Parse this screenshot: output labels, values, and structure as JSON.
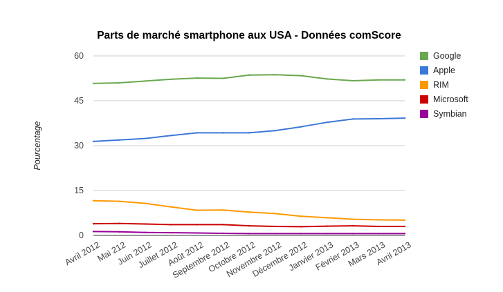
{
  "chart_data": {
    "type": "line",
    "title": "Parts de marché smartphone aux USA - Données comScore",
    "xlabel": "",
    "ylabel": "Pourcentage",
    "ylim": [
      0,
      60
    ],
    "yticks": [
      0,
      15,
      30,
      45,
      60
    ],
    "grid": true,
    "legend_position": "right",
    "categories": [
      "Avril 2012",
      "Mai 212",
      "Juin 2012",
      "Juillet 2012",
      "Août 2012",
      "Septembre 2012",
      "Octobre 2012",
      "Novembre 2012",
      "Décembre 2012",
      "Janvier 2013",
      "Février 2013",
      "Mars 2013",
      "Avril 2013"
    ],
    "series": [
      {
        "name": "Google",
        "color": "#6aa84f",
        "values": [
          50.8,
          51.0,
          51.6,
          52.2,
          52.6,
          52.5,
          53.6,
          53.7,
          53.4,
          52.3,
          51.7,
          52.0,
          52.0
        ]
      },
      {
        "name": "Apple",
        "color": "#3c78d8",
        "values": [
          31.4,
          31.9,
          32.4,
          33.4,
          34.3,
          34.3,
          34.3,
          35.0,
          36.3,
          37.8,
          38.9,
          39.0,
          39.2
        ]
      },
      {
        "name": "RIM",
        "color": "#ff9900",
        "values": [
          11.6,
          11.4,
          10.7,
          9.5,
          8.4,
          8.5,
          7.8,
          7.3,
          6.4,
          5.9,
          5.4,
          5.2,
          5.1
        ]
      },
      {
        "name": "Microsoft",
        "color": "#cc0000",
        "values": [
          3.9,
          4.0,
          3.8,
          3.6,
          3.6,
          3.6,
          3.2,
          3.0,
          2.9,
          3.1,
          3.2,
          3.0,
          3.0
        ]
      },
      {
        "name": "Symbian",
        "color": "#990099",
        "values": [
          1.3,
          1.2,
          1.0,
          0.9,
          0.8,
          0.7,
          0.6,
          0.6,
          0.6,
          0.6,
          0.6,
          0.6,
          0.6
        ]
      }
    ]
  }
}
